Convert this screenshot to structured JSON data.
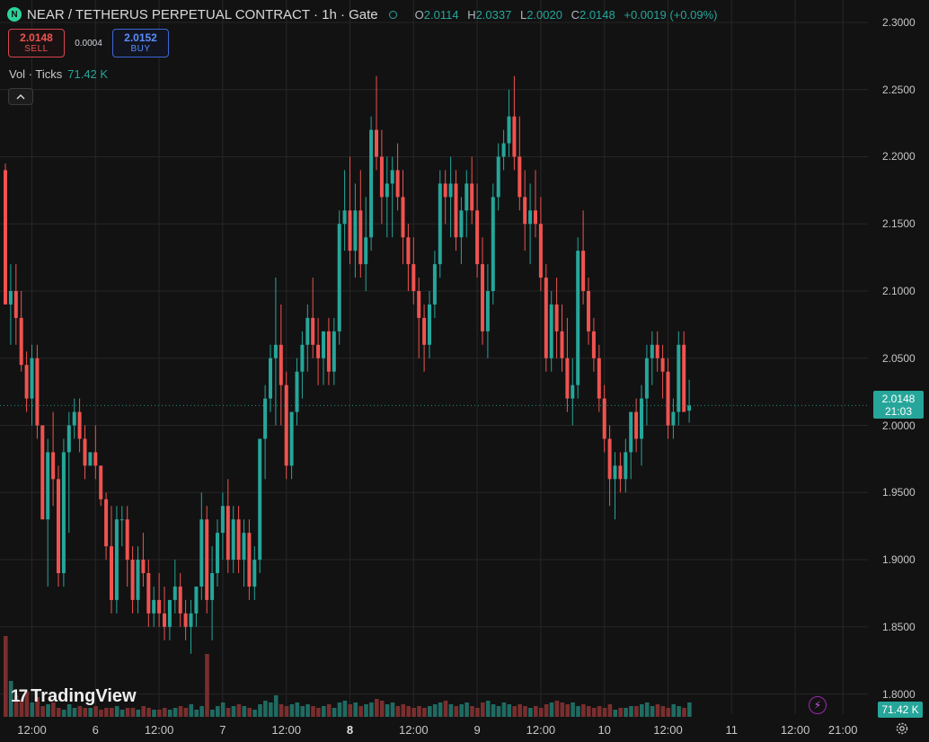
{
  "header": {
    "symbol_icon": "N",
    "title": "NEAR / TETHERUS PERPETUAL CONTRACT · 1h · Gate",
    "o_label": "O",
    "o_value": "2.0114",
    "h_label": "H",
    "h_value": "2.0337",
    "l_label": "L",
    "l_value": "2.0020",
    "c_label": "C",
    "c_value": "2.0148",
    "change": "+0.0019 (+0.09%)"
  },
  "trade": {
    "sell_price": "2.0148",
    "sell_label": "SELL",
    "spread": "0.0004",
    "buy_price": "2.0152",
    "buy_label": "BUY"
  },
  "volume_legend": {
    "label": "Vol · Ticks",
    "value": "71.42 K"
  },
  "price_tag": {
    "price": "2.0148",
    "countdown": "21:03"
  },
  "volume_tag": "71.42 K",
  "brand": "TradingView",
  "colors": {
    "up": "#26a69a",
    "down": "#ef5350",
    "up_vol": "#1f6b62",
    "down_vol": "#7a2e2e",
    "background": "#121212",
    "grid": "#262626"
  },
  "icons": [
    "symbol-logo-icon",
    "live-status-icon",
    "collapse-chevron-icon",
    "lightning-icon",
    "settings-gear-icon",
    "tradingview-logo-icon"
  ],
  "chart_data": {
    "type": "candlestick",
    "interval": "1h",
    "y_axis_ticks": [
      "2.3000",
      "2.2500",
      "2.2000",
      "2.1500",
      "2.1000",
      "2.0500",
      "2.0000",
      "1.9500",
      "1.9000",
      "1.8500",
      "1.8000"
    ],
    "ylim": [
      1.785,
      2.31
    ],
    "x_axis_ticks": [
      {
        "label": "12:00",
        "bold": false,
        "bar": 5
      },
      {
        "label": "6",
        "bold": false,
        "bar": 17
      },
      {
        "label": "12:00",
        "bold": false,
        "bar": 29
      },
      {
        "label": "7",
        "bold": false,
        "bar": 41
      },
      {
        "label": "12:00",
        "bold": false,
        "bar": 53
      },
      {
        "label": "8",
        "bold": true,
        "bar": 65
      },
      {
        "label": "12:00",
        "bold": false,
        "bar": 77
      },
      {
        "label": "9",
        "bold": false,
        "bar": 89
      },
      {
        "label": "12:00",
        "bold": false,
        "bar": 101
      },
      {
        "label": "10",
        "bold": false,
        "bar": 113
      },
      {
        "label": "12:00",
        "bold": false,
        "bar": 125
      },
      {
        "label": "11",
        "bold": false,
        "bar": 137
      },
      {
        "label": "12:00",
        "bold": false,
        "bar": 149
      },
      {
        "label": "21:00",
        "bold": false,
        "bar": 158
      }
    ],
    "last_price": 2.0148,
    "volume_max": 100,
    "candles": [
      [
        2.19,
        2.195,
        2.09,
        2.09,
        45
      ],
      [
        2.09,
        2.12,
        2.06,
        2.1,
        20
      ],
      [
        2.1,
        2.12,
        2.06,
        2.08,
        12
      ],
      [
        2.08,
        2.1,
        2.04,
        2.045,
        9
      ],
      [
        2.045,
        2.055,
        2.01,
        2.02,
        14
      ],
      [
        2.02,
        2.06,
        2.0,
        2.05,
        8
      ],
      [
        2.05,
        2.06,
        1.99,
        2.0,
        11
      ],
      [
        2.0,
        2.0,
        1.93,
        1.93,
        6
      ],
      [
        1.93,
        1.99,
        1.88,
        1.98,
        7
      ],
      [
        1.98,
        2.01,
        1.94,
        1.96,
        8
      ],
      [
        1.96,
        1.97,
        1.88,
        1.89,
        5
      ],
      [
        1.89,
        1.99,
        1.88,
        1.98,
        4
      ],
      [
        1.98,
        2.01,
        1.92,
        2.0,
        7
      ],
      [
        2.0,
        2.02,
        1.99,
        2.01,
        5
      ],
      [
        2.01,
        2.02,
        1.98,
        1.99,
        6
      ],
      [
        1.99,
        2.0,
        1.96,
        1.97,
        5
      ],
      [
        1.97,
        1.98,
        1.97,
        1.98,
        5
      ],
      [
        1.98,
        2.0,
        1.96,
        1.97,
        6
      ],
      [
        1.97,
        1.97,
        1.94,
        1.945,
        4
      ],
      [
        1.945,
        1.95,
        1.9,
        1.91,
        5
      ],
      [
        1.91,
        1.94,
        1.86,
        1.87,
        5
      ],
      [
        1.87,
        1.94,
        1.86,
        1.93,
        6
      ],
      [
        1.93,
        1.94,
        1.91,
        1.93,
        4
      ],
      [
        1.93,
        1.94,
        1.88,
        1.9,
        5
      ],
      [
        1.9,
        1.91,
        1.86,
        1.87,
        5
      ],
      [
        1.87,
        1.91,
        1.86,
        1.9,
        4
      ],
      [
        1.9,
        1.92,
        1.88,
        1.89,
        6
      ],
      [
        1.89,
        1.9,
        1.85,
        1.86,
        5
      ],
      [
        1.86,
        1.88,
        1.85,
        1.87,
        4
      ],
      [
        1.87,
        1.89,
        1.85,
        1.86,
        4
      ],
      [
        1.86,
        1.88,
        1.84,
        1.85,
        5
      ],
      [
        1.85,
        1.87,
        1.84,
        1.87,
        4
      ],
      [
        1.87,
        1.9,
        1.86,
        1.88,
        5
      ],
      [
        1.88,
        1.89,
        1.85,
        1.86,
        6
      ],
      [
        1.86,
        1.87,
        1.84,
        1.85,
        5
      ],
      [
        1.85,
        1.87,
        1.83,
        1.86,
        7
      ],
      [
        1.86,
        1.88,
        1.85,
        1.88,
        4
      ],
      [
        1.88,
        1.95,
        1.87,
        1.93,
        6
      ],
      [
        1.93,
        1.94,
        1.86,
        1.87,
        35
      ],
      [
        1.87,
        1.91,
        1.84,
        1.89,
        4
      ],
      [
        1.89,
        1.93,
        1.88,
        1.92,
        6
      ],
      [
        1.92,
        1.95,
        1.9,
        1.94,
        8
      ],
      [
        1.94,
        1.96,
        1.89,
        1.9,
        5
      ],
      [
        1.9,
        1.94,
        1.89,
        1.93,
        6
      ],
      [
        1.93,
        1.94,
        1.89,
        1.9,
        7
      ],
      [
        1.9,
        1.93,
        1.88,
        1.92,
        6
      ],
      [
        1.92,
        1.93,
        1.87,
        1.88,
        5
      ],
      [
        1.88,
        1.91,
        1.87,
        1.9,
        4
      ],
      [
        1.9,
        1.99,
        1.89,
        1.99,
        7
      ],
      [
        1.99,
        2.03,
        1.96,
        2.02,
        9
      ],
      [
        2.02,
        2.06,
        2.01,
        2.05,
        8
      ],
      [
        2.05,
        2.11,
        2.0,
        2.06,
        12
      ],
      [
        2.06,
        2.09,
        2.0,
        2.03,
        7
      ],
      [
        2.03,
        2.04,
        1.96,
        1.97,
        6
      ],
      [
        1.97,
        2.01,
        1.96,
        2.01,
        7
      ],
      [
        2.01,
        2.05,
        2.0,
        2.04,
        8
      ],
      [
        2.04,
        2.07,
        2.02,
        2.06,
        6
      ],
      [
        2.06,
        2.09,
        2.04,
        2.08,
        7
      ],
      [
        2.08,
        2.11,
        2.05,
        2.06,
        6
      ],
      [
        2.06,
        2.08,
        2.03,
        2.05,
        5
      ],
      [
        2.05,
        2.07,
        2.03,
        2.07,
        6
      ],
      [
        2.07,
        2.08,
        2.03,
        2.04,
        7
      ],
      [
        2.04,
        2.08,
        2.03,
        2.07,
        5
      ],
      [
        2.07,
        2.16,
        2.06,
        2.15,
        8
      ],
      [
        2.15,
        2.19,
        2.13,
        2.16,
        9
      ],
      [
        2.16,
        2.2,
        2.12,
        2.13,
        7
      ],
      [
        2.13,
        2.18,
        2.11,
        2.16,
        8
      ],
      [
        2.16,
        2.19,
        2.11,
        2.12,
        6
      ],
      [
        2.12,
        2.17,
        2.1,
        2.14,
        7
      ],
      [
        2.14,
        2.23,
        2.13,
        2.22,
        8
      ],
      [
        2.22,
        2.26,
        2.19,
        2.2,
        10
      ],
      [
        2.2,
        2.22,
        2.15,
        2.17,
        9
      ],
      [
        2.17,
        2.2,
        2.14,
        2.18,
        7
      ],
      [
        2.18,
        2.2,
        2.14,
        2.19,
        8
      ],
      [
        2.19,
        2.21,
        2.16,
        2.17,
        6
      ],
      [
        2.17,
        2.19,
        2.12,
        2.14,
        7
      ],
      [
        2.14,
        2.15,
        2.1,
        2.12,
        6
      ],
      [
        2.12,
        2.14,
        2.09,
        2.1,
        5
      ],
      [
        2.1,
        2.11,
        2.05,
        2.08,
        6
      ],
      [
        2.08,
        2.09,
        2.04,
        2.06,
        5
      ],
      [
        2.06,
        2.1,
        2.05,
        2.09,
        6
      ],
      [
        2.09,
        2.13,
        2.08,
        2.12,
        7
      ],
      [
        2.12,
        2.19,
        2.11,
        2.18,
        8
      ],
      [
        2.18,
        2.19,
        2.15,
        2.17,
        9
      ],
      [
        2.17,
        2.2,
        2.14,
        2.18,
        7
      ],
      [
        2.18,
        2.19,
        2.13,
        2.14,
        6
      ],
      [
        2.14,
        2.17,
        2.12,
        2.16,
        7
      ],
      [
        2.16,
        2.19,
        2.14,
        2.18,
        8
      ],
      [
        2.18,
        2.2,
        2.15,
        2.16,
        6
      ],
      [
        2.16,
        2.18,
        2.11,
        2.12,
        5
      ],
      [
        2.12,
        2.14,
        2.06,
        2.07,
        8
      ],
      [
        2.07,
        2.12,
        2.05,
        2.1,
        9
      ],
      [
        2.1,
        2.18,
        2.09,
        2.17,
        7
      ],
      [
        2.17,
        2.21,
        2.16,
        2.2,
        6
      ],
      [
        2.2,
        2.22,
        2.19,
        2.21,
        8
      ],
      [
        2.21,
        2.25,
        2.2,
        2.23,
        7
      ],
      [
        2.23,
        2.26,
        2.19,
        2.2,
        6
      ],
      [
        2.2,
        2.23,
        2.16,
        2.17,
        7
      ],
      [
        2.17,
        2.19,
        2.13,
        2.15,
        6
      ],
      [
        2.15,
        2.18,
        2.12,
        2.16,
        5
      ],
      [
        2.16,
        2.19,
        2.14,
        2.15,
        6
      ],
      [
        2.15,
        2.17,
        2.1,
        2.11,
        5
      ],
      [
        2.11,
        2.12,
        2.04,
        2.05,
        7
      ],
      [
        2.05,
        2.1,
        2.04,
        2.09,
        8
      ],
      [
        2.09,
        2.11,
        2.05,
        2.07,
        9
      ],
      [
        2.07,
        2.09,
        2.04,
        2.05,
        8
      ],
      [
        2.05,
        2.08,
        2.01,
        2.02,
        7
      ],
      [
        2.02,
        2.05,
        2.0,
        2.03,
        8
      ],
      [
        2.03,
        2.14,
        2.02,
        2.13,
        6
      ],
      [
        2.13,
        2.16,
        2.09,
        2.1,
        7
      ],
      [
        2.1,
        2.11,
        2.06,
        2.07,
        6
      ],
      [
        2.07,
        2.08,
        2.04,
        2.05,
        5
      ],
      [
        2.05,
        2.06,
        2.01,
        2.02,
        6
      ],
      [
        2.02,
        2.03,
        1.98,
        1.99,
        5
      ],
      [
        1.99,
        2.0,
        1.94,
        1.96,
        7
      ],
      [
        1.96,
        1.98,
        1.93,
        1.97,
        4
      ],
      [
        1.97,
        1.98,
        1.95,
        1.96,
        5
      ],
      [
        1.96,
        1.99,
        1.95,
        1.98,
        5
      ],
      [
        1.98,
        2.01,
        1.96,
        2.01,
        6
      ],
      [
        2.01,
        2.02,
        1.98,
        1.99,
        6
      ],
      [
        1.99,
        2.03,
        1.97,
        2.02,
        7
      ],
      [
        2.02,
        2.06,
        2.0,
        2.05,
        8
      ],
      [
        2.05,
        2.07,
        2.03,
        2.06,
        6
      ],
      [
        2.06,
        2.07,
        2.04,
        2.05,
        7
      ],
      [
        2.05,
        2.06,
        2.02,
        2.04,
        6
      ],
      [
        2.04,
        2.05,
        1.99,
        2.0,
        5
      ],
      [
        2.0,
        2.02,
        1.99,
        2.01,
        7
      ],
      [
        2.01,
        2.07,
        2.0,
        2.06,
        6
      ],
      [
        2.06,
        2.07,
        2.01,
        2.01,
        5
      ],
      [
        2.011,
        2.034,
        2.002,
        2.0148,
        8
      ]
    ]
  }
}
